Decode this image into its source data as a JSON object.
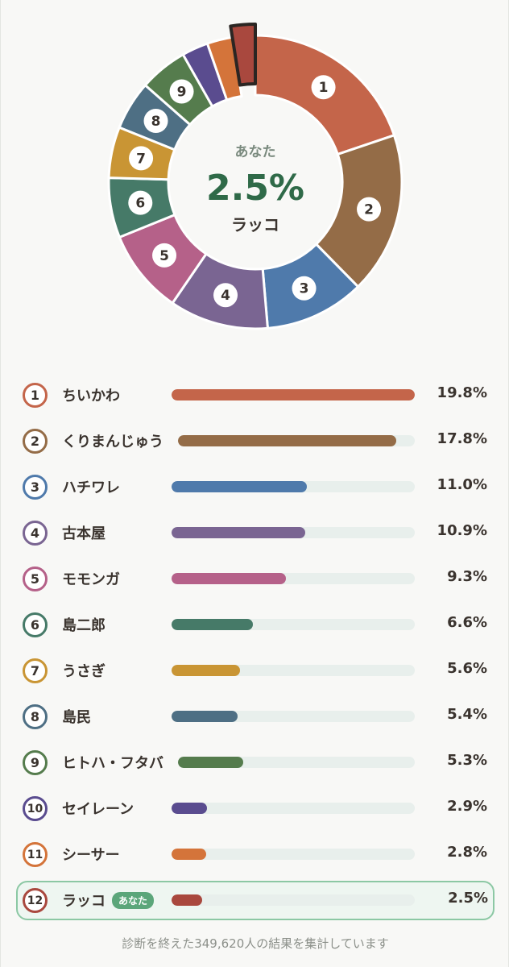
{
  "center": {
    "label": "あなた",
    "percent": "2.5%",
    "name": "ラッコ"
  },
  "you_tag": "あなた",
  "footer": "診断を終えた349,620人の結果を集計しています",
  "chart_data": {
    "type": "pie",
    "highlight_rank": 12,
    "items": [
      {
        "rank": 1,
        "name": "ちいかわ",
        "value": 19.8,
        "label": "19.8%",
        "color": "#c4654a"
      },
      {
        "rank": 2,
        "name": "くりまんじゅう",
        "value": 17.8,
        "label": "17.8%",
        "color": "#946c47"
      },
      {
        "rank": 3,
        "name": "ハチワレ",
        "value": 11.0,
        "label": "11.0%",
        "color": "#4f7aab"
      },
      {
        "rank": 4,
        "name": "古本屋",
        "value": 10.9,
        "label": "10.9%",
        "color": "#7a6592"
      },
      {
        "rank": 5,
        "name": "モモンガ",
        "value": 9.3,
        "label": "9.3%",
        "color": "#b56189"
      },
      {
        "rank": 6,
        "name": "島二郎",
        "value": 6.6,
        "label": "6.6%",
        "color": "#467a68"
      },
      {
        "rank": 7,
        "name": "うさぎ",
        "value": 5.6,
        "label": "5.6%",
        "color": "#c99534"
      },
      {
        "rank": 8,
        "name": "島民",
        "value": 5.4,
        "label": "5.4%",
        "color": "#4e6f84"
      },
      {
        "rank": 9,
        "name": "ヒトハ・フタバ",
        "value": 5.3,
        "label": "5.3%",
        "color": "#557c4d"
      },
      {
        "rank": 10,
        "name": "セイレーン",
        "value": 2.9,
        "label": "2.9%",
        "color": "#5a4c8f"
      },
      {
        "rank": 11,
        "name": "シーサー",
        "value": 2.8,
        "label": "2.8%",
        "color": "#d4743a"
      },
      {
        "rank": 12,
        "name": "ラッコ",
        "value": 2.5,
        "label": "2.5%",
        "color": "#a9483e"
      }
    ]
  }
}
